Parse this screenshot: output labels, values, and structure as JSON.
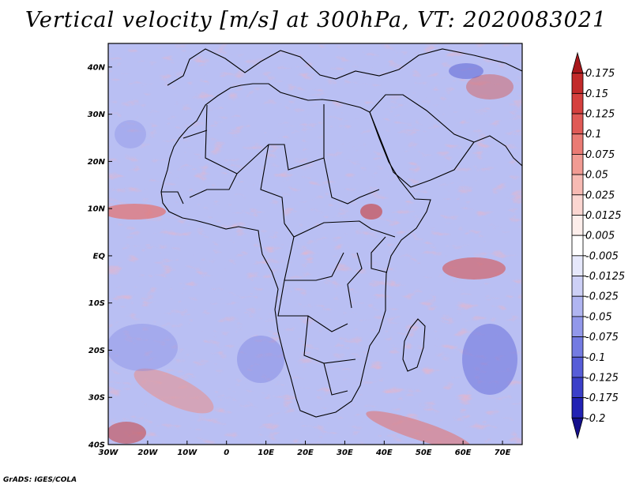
{
  "title": "Vertical velocity [m/s] at 300hPa, VT: 2020083021",
  "credit": "GrADS: IGES/COLA",
  "map": {
    "lon_range": [
      -30,
      75
    ],
    "lat_range": [
      -40,
      45
    ],
    "lat_ticks": [
      {
        "value": 40,
        "label": "40N"
      },
      {
        "value": 30,
        "label": "30N"
      },
      {
        "value": 20,
        "label": "20N"
      },
      {
        "value": 10,
        "label": "10N"
      },
      {
        "value": 0,
        "label": "EQ"
      },
      {
        "value": -10,
        "label": "10S"
      },
      {
        "value": -20,
        "label": "20S"
      },
      {
        "value": -30,
        "label": "30S"
      },
      {
        "value": -40,
        "label": "40S"
      }
    ],
    "lon_ticks": [
      {
        "value": -30,
        "label": "30W"
      },
      {
        "value": -20,
        "label": "20W"
      },
      {
        "value": -10,
        "label": "10W"
      },
      {
        "value": 0,
        "label": "0"
      },
      {
        "value": 10,
        "label": "10E"
      },
      {
        "value": 20,
        "label": "20E"
      },
      {
        "value": 30,
        "label": "30E"
      },
      {
        "value": 40,
        "label": "40E"
      },
      {
        "value": 50,
        "label": "50E"
      },
      {
        "value": 60,
        "label": "60E"
      },
      {
        "value": 70,
        "label": "70E"
      }
    ]
  },
  "colorbar": {
    "labels": [
      "0.175",
      "0.15",
      "0.125",
      "0.1",
      "0.075",
      "0.05",
      "0.025",
      "0.0125",
      "0.005",
      "-0.005",
      "-0.0125",
      "-0.025",
      "-0.05",
      "-0.075",
      "-0.1",
      "-0.125",
      "-0.175",
      "-0.2"
    ],
    "colors": [
      "#a8171b",
      "#c22a2a",
      "#d5403e",
      "#e05a56",
      "#ea7b74",
      "#f19b93",
      "#f7bab3",
      "#fbd6d1",
      "#fdeeeb",
      "#ffffff",
      "#e6e8fb",
      "#cdd0f6",
      "#b0b5f1",
      "#9298ea",
      "#747be2",
      "#575dd8",
      "#3b3fc9",
      "#2222b4",
      "#140f8c"
    ]
  }
}
